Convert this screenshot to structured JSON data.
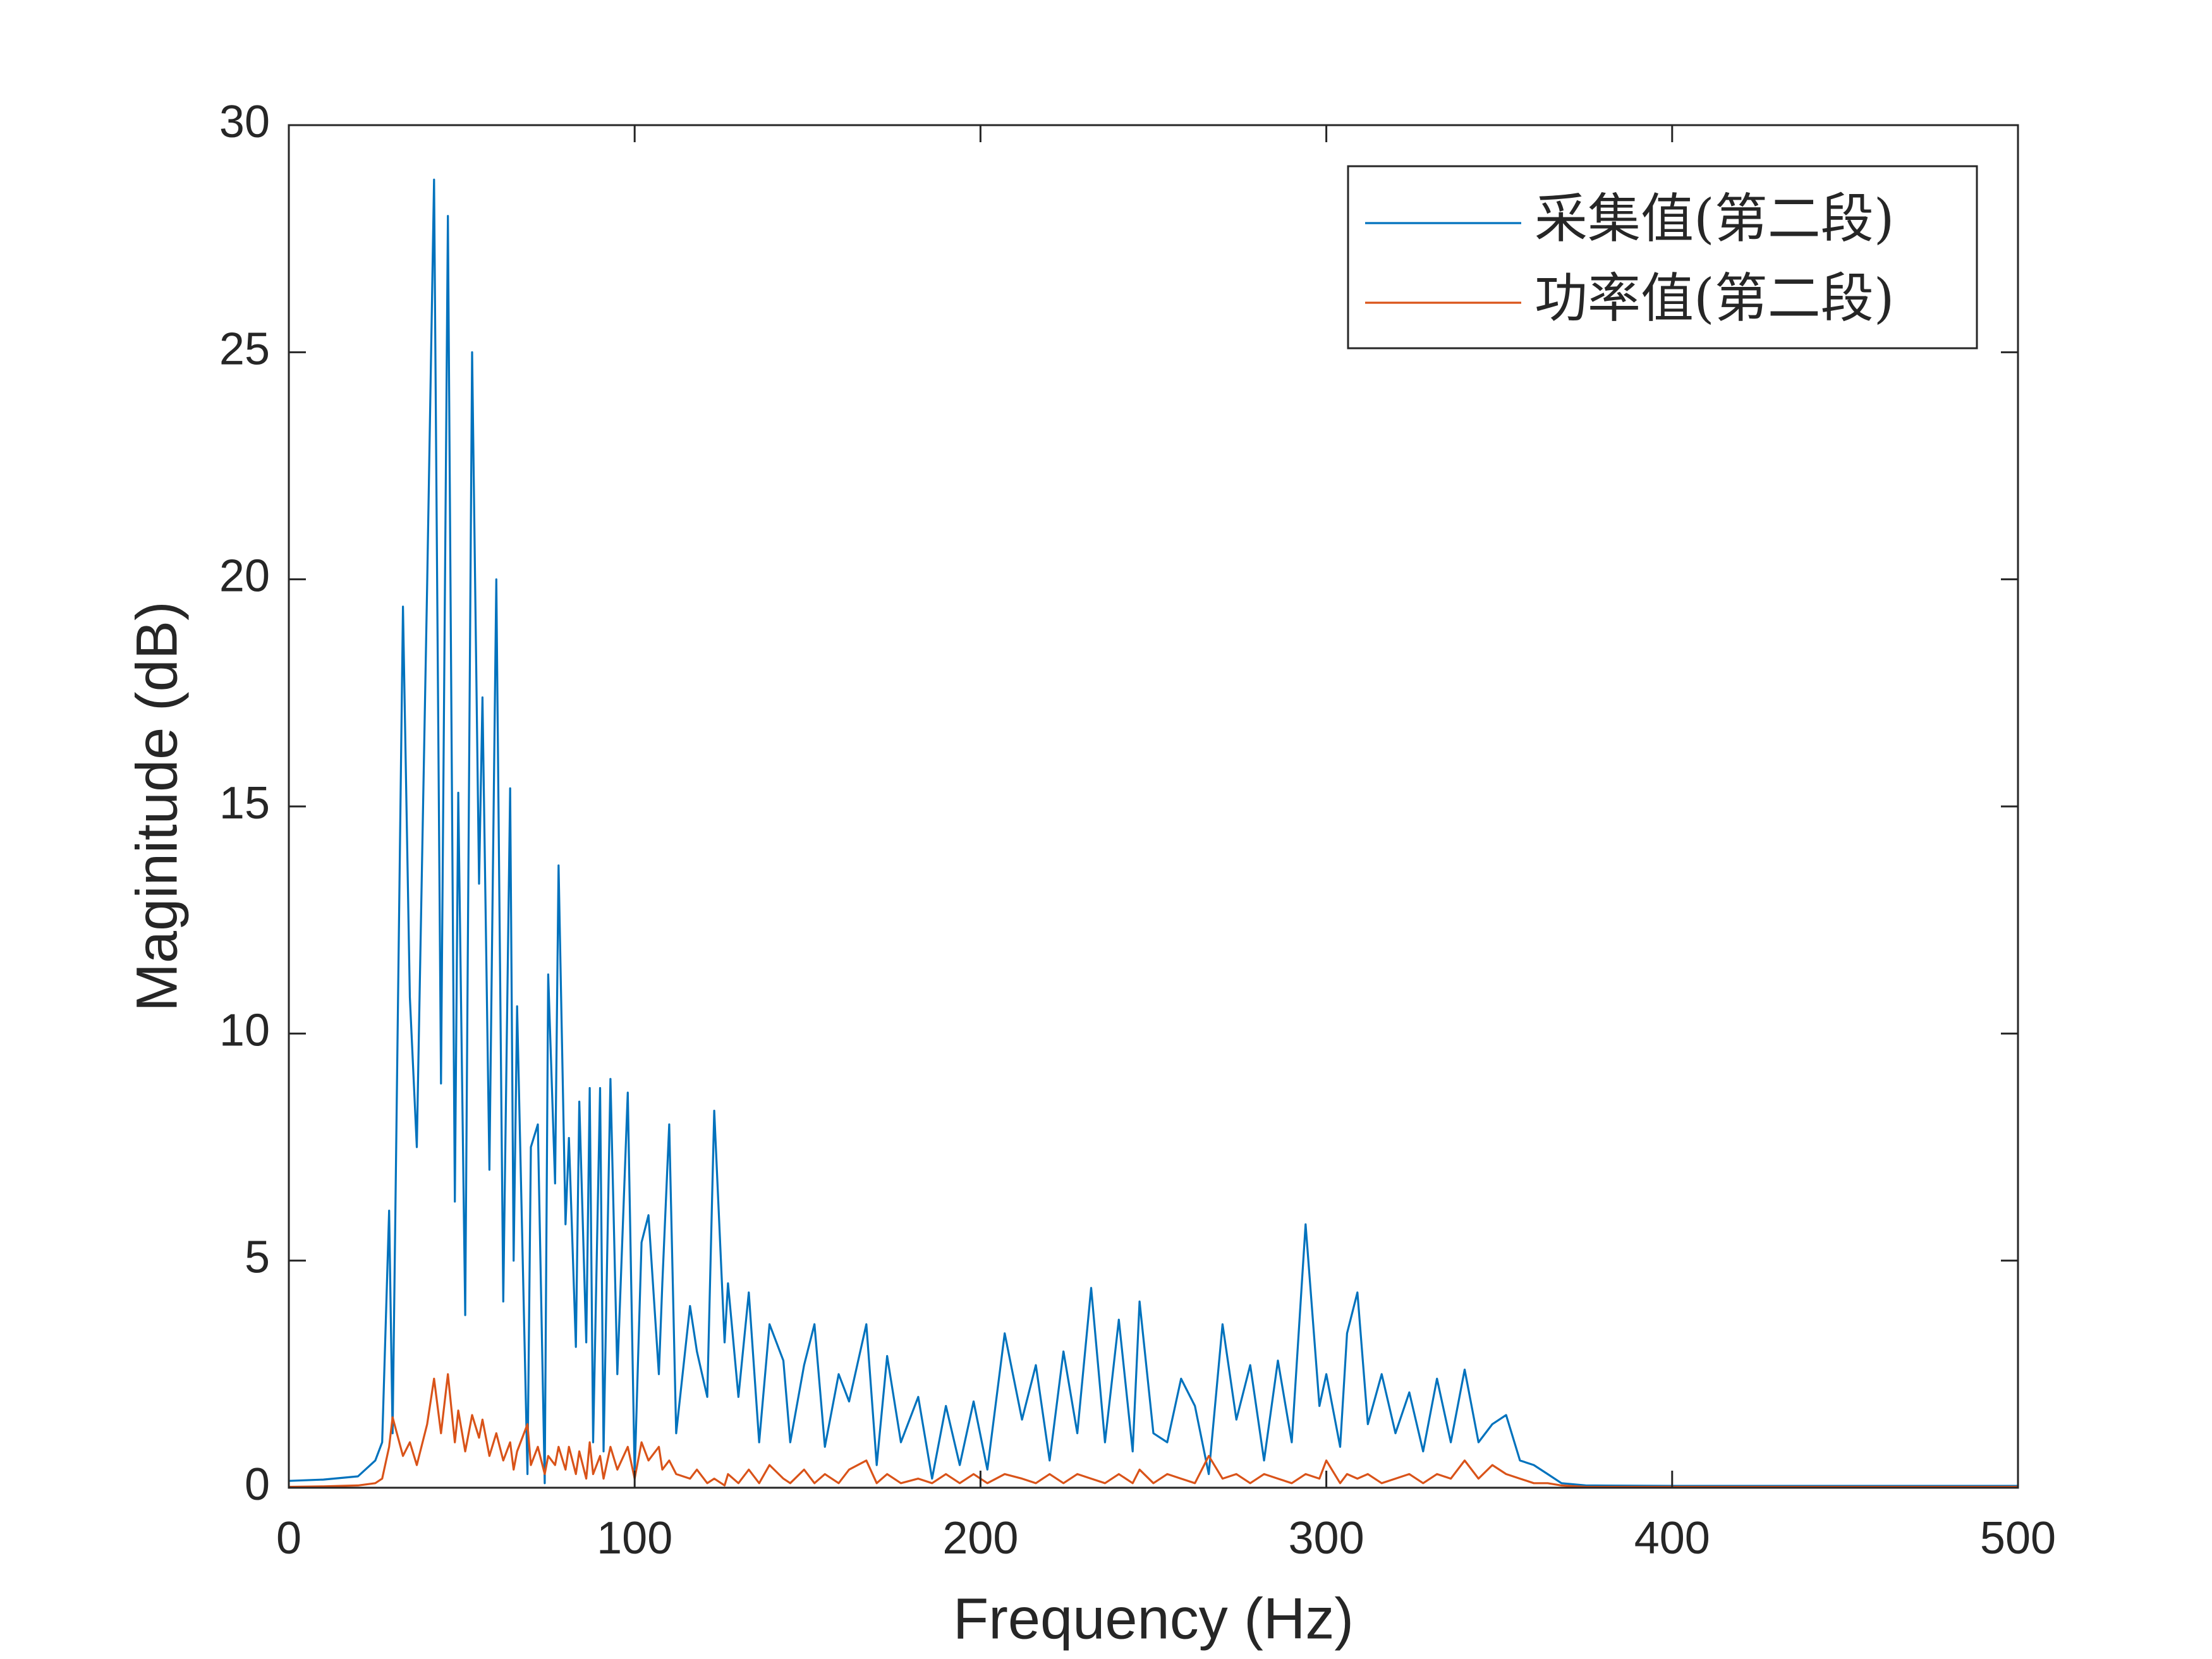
{
  "chart_data": {
    "type": "line",
    "xlabel": "Frequency (Hz)",
    "ylabel": "Maginitude (dB)",
    "xlim": [
      0,
      500
    ],
    "ylim": [
      0,
      30
    ],
    "xticks": [
      0,
      100,
      200,
      300,
      400,
      500
    ],
    "yticks": [
      0,
      5,
      10,
      15,
      20,
      25,
      30
    ],
    "legend": "northeast",
    "x": [
      0,
      10,
      20,
      25,
      27,
      29,
      30,
      33,
      35,
      37,
      40,
      42,
      44,
      46,
      48,
      49,
      51,
      53,
      55,
      56,
      58,
      60,
      62,
      64,
      65,
      66,
      69,
      70,
      72,
      74,
      75,
      77,
      78,
      80,
      81,
      83,
      84,
      86,
      87,
      88,
      90,
      91,
      93,
      95,
      98,
      100,
      102,
      104,
      107,
      108,
      110,
      112,
      116,
      118,
      121,
      123,
      126,
      127,
      130,
      133,
      136,
      139,
      143,
      145,
      149,
      152,
      155,
      159,
      162,
      167,
      170,
      173,
      177,
      182,
      186,
      190,
      194,
      198,
      202,
      207,
      212,
      216,
      220,
      224,
      228,
      232,
      236,
      240,
      244,
      246,
      250,
      254,
      258,
      262,
      266,
      270,
      274,
      278,
      282,
      286,
      290,
      294,
      298,
      300,
      304,
      306,
      309,
      312,
      316,
      320,
      324,
      328,
      332,
      336,
      340,
      344,
      348,
      352,
      356,
      360,
      364,
      368,
      375,
      400,
      500
    ],
    "series": [
      {
        "name": "采集值(第二段)",
        "color": "#0072BD",
        "values": [
          0.15,
          0.18,
          0.25,
          0.6,
          1.0,
          6.1,
          1.2,
          19.4,
          10.8,
          7.5,
          19.9,
          28.8,
          8.9,
          28.0,
          6.3,
          15.3,
          3.8,
          25.0,
          13.3,
          17.4,
          7.0,
          20.0,
          4.1,
          15.4,
          5.0,
          10.6,
          0.3,
          7.5,
          8.0,
          0.1,
          11.3,
          6.7,
          13.7,
          5.8,
          7.7,
          3.1,
          8.5,
          3.2,
          8.8,
          1.0,
          8.8,
          0.8,
          9.0,
          2.5,
          8.7,
          0.3,
          5.4,
          6.0,
          2.5,
          4.5,
          8.0,
          1.2,
          4.0,
          3.0,
          2.0,
          8.3,
          3.2,
          4.5,
          2.0,
          4.3,
          1.0,
          3.6,
          2.8,
          1.0,
          2.7,
          3.6,
          0.9,
          2.5,
          1.9,
          3.6,
          0.5,
          2.9,
          1.0,
          2.0,
          0.2,
          1.8,
          0.5,
          1.9,
          0.4,
          3.4,
          1.5,
          2.7,
          0.6,
          3.0,
          1.2,
          4.4,
          1.0,
          3.7,
          0.8,
          4.1,
          1.2,
          1.0,
          2.4,
          1.8,
          0.3,
          3.6,
          1.5,
          2.7,
          0.6,
          2.8,
          1.0,
          5.8,
          1.8,
          2.5,
          0.9,
          3.4,
          4.3,
          1.4,
          2.5,
          1.2,
          2.1,
          0.8,
          2.4,
          1.0,
          2.6,
          1.0,
          1.4,
          1.6,
          0.6,
          0.5,
          0.3,
          0.1,
          0.05,
          0.04,
          0.04
        ]
      },
      {
        "name": "功率值(第二段)",
        "color": "#D95319",
        "values": [
          0.02,
          0.03,
          0.05,
          0.1,
          0.2,
          0.9,
          1.55,
          0.7,
          1.0,
          0.5,
          1.4,
          2.4,
          1.2,
          2.5,
          1.0,
          1.7,
          0.8,
          1.6,
          1.1,
          1.5,
          0.7,
          1.2,
          0.6,
          1.0,
          0.4,
          0.8,
          1.4,
          0.5,
          0.9,
          0.3,
          0.7,
          0.5,
          0.9,
          0.4,
          0.9,
          0.3,
          0.8,
          0.2,
          1.0,
          0.3,
          0.7,
          0.2,
          0.9,
          0.4,
          0.9,
          0.2,
          1.0,
          0.6,
          0.9,
          0.4,
          0.6,
          0.3,
          0.2,
          0.4,
          0.1,
          0.2,
          0.05,
          0.3,
          0.1,
          0.4,
          0.1,
          0.5,
          0.2,
          0.1,
          0.4,
          0.1,
          0.3,
          0.1,
          0.4,
          0.6,
          0.1,
          0.3,
          0.1,
          0.2,
          0.1,
          0.3,
          0.1,
          0.3,
          0.1,
          0.3,
          0.2,
          0.1,
          0.3,
          0.1,
          0.3,
          0.2,
          0.1,
          0.3,
          0.1,
          0.4,
          0.1,
          0.3,
          0.2,
          0.1,
          0.7,
          0.2,
          0.3,
          0.1,
          0.3,
          0.2,
          0.1,
          0.3,
          0.2,
          0.6,
          0.1,
          0.3,
          0.2,
          0.3,
          0.1,
          0.2,
          0.3,
          0.1,
          0.3,
          0.2,
          0.6,
          0.2,
          0.5,
          0.3,
          0.2,
          0.1,
          0.1,
          0.05,
          0.02,
          0.02,
          0.02
        ]
      }
    ]
  }
}
